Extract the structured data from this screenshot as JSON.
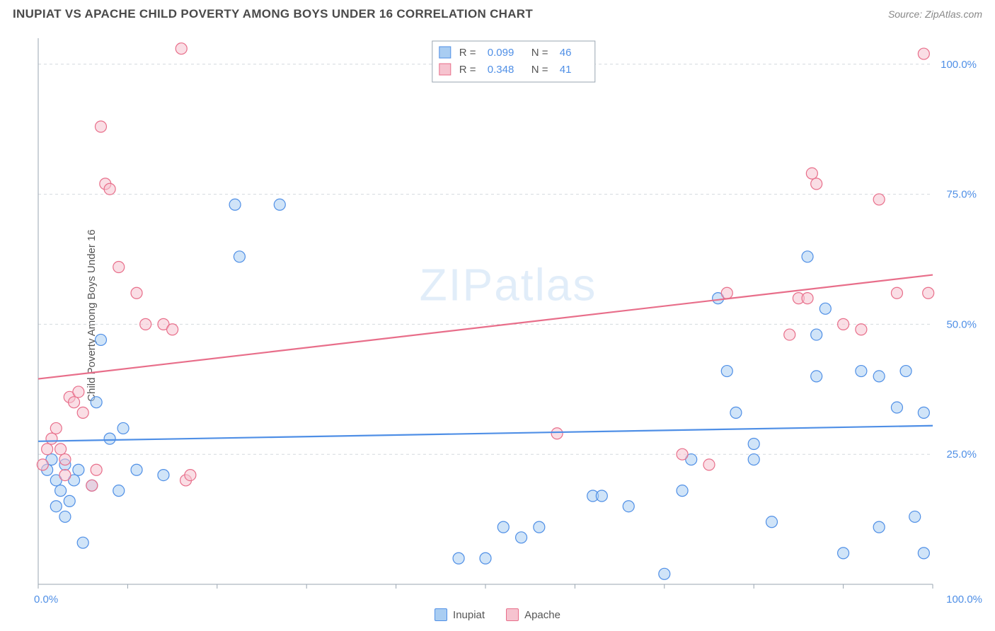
{
  "title": "INUPIAT VS APACHE CHILD POVERTY AMONG BOYS UNDER 16 CORRELATION CHART",
  "source_label": "Source: ZipAtlas.com",
  "y_axis_label": "Child Poverty Among Boys Under 16",
  "watermark": {
    "bold": "ZIP",
    "thin": "atlas"
  },
  "axis": {
    "xlim": [
      0,
      100
    ],
    "ylim": [
      0,
      105
    ],
    "x_ticks_minor_step": 10,
    "y_ticks": [
      25,
      50,
      75,
      100
    ],
    "y_tick_labels": [
      "25.0%",
      "50.0%",
      "75.0%",
      "100.0%"
    ],
    "x_end_labels": [
      "0.0%",
      "100.0%"
    ],
    "axis_color": "#9aa5b1",
    "grid_color": "#d4d9de",
    "tick_label_color": "#4f8fe6"
  },
  "series": [
    {
      "name": "Inupiat",
      "fill": "#a9cdf2",
      "stroke": "#4f8fe6",
      "R": "0.099",
      "N": "46",
      "trend": {
        "y0": 27.5,
        "y1": 30.5
      },
      "marker_radius": 8,
      "points": [
        [
          1,
          22
        ],
        [
          1.5,
          24
        ],
        [
          2,
          20
        ],
        [
          2,
          15
        ],
        [
          2.5,
          18
        ],
        [
          3,
          23
        ],
        [
          3,
          13
        ],
        [
          3.5,
          16
        ],
        [
          4,
          20
        ],
        [
          4.5,
          22
        ],
        [
          5,
          8
        ],
        [
          6,
          19
        ],
        [
          6.5,
          35
        ],
        [
          7,
          47
        ],
        [
          8,
          28
        ],
        [
          9,
          18
        ],
        [
          9.5,
          30
        ],
        [
          11,
          22
        ],
        [
          14,
          21
        ],
        [
          22,
          73
        ],
        [
          22.5,
          63
        ],
        [
          27,
          73
        ],
        [
          47,
          5
        ],
        [
          50,
          5
        ],
        [
          52,
          11
        ],
        [
          54,
          9
        ],
        [
          56,
          11
        ],
        [
          62,
          17
        ],
        [
          63,
          17
        ],
        [
          66,
          15
        ],
        [
          70,
          2
        ],
        [
          72,
          18
        ],
        [
          73,
          24
        ],
        [
          76,
          55
        ],
        [
          77,
          41
        ],
        [
          78,
          33
        ],
        [
          80,
          27
        ],
        [
          80,
          24
        ],
        [
          82,
          12
        ],
        [
          86,
          63
        ],
        [
          87,
          48
        ],
        [
          87,
          40
        ],
        [
          88,
          53
        ],
        [
          90,
          6
        ],
        [
          92,
          41
        ],
        [
          94,
          40
        ],
        [
          94,
          11
        ],
        [
          96,
          34
        ],
        [
          97,
          41
        ],
        [
          98,
          13
        ],
        [
          99,
          6
        ],
        [
          99,
          33
        ]
      ]
    },
    {
      "name": "Apache",
      "fill": "#f6c3cf",
      "stroke": "#e86e8a",
      "R": "0.348",
      "N": "41",
      "trend": {
        "y0": 39.5,
        "y1": 59.5
      },
      "marker_radius": 8,
      "points": [
        [
          0.5,
          23
        ],
        [
          1,
          26
        ],
        [
          1.5,
          28
        ],
        [
          2,
          30
        ],
        [
          2.5,
          26
        ],
        [
          3,
          24
        ],
        [
          3,
          21
        ],
        [
          3.5,
          36
        ],
        [
          4,
          35
        ],
        [
          4.5,
          37
        ],
        [
          5,
          33
        ],
        [
          6,
          19
        ],
        [
          6.5,
          22
        ],
        [
          7,
          88
        ],
        [
          7.5,
          77
        ],
        [
          8,
          76
        ],
        [
          9,
          61
        ],
        [
          11,
          56
        ],
        [
          12,
          50
        ],
        [
          14,
          50
        ],
        [
          15,
          49
        ],
        [
          16,
          103
        ],
        [
          16.5,
          20
        ],
        [
          17,
          21
        ],
        [
          58,
          29
        ],
        [
          72,
          25
        ],
        [
          75,
          23
        ],
        [
          77,
          56
        ],
        [
          84,
          48
        ],
        [
          85,
          55
        ],
        [
          86,
          55
        ],
        [
          86.5,
          79
        ],
        [
          87,
          77
        ],
        [
          90,
          50
        ],
        [
          92,
          49
        ],
        [
          94,
          74
        ],
        [
          96,
          56
        ],
        [
          99,
          102
        ],
        [
          99.5,
          56
        ]
      ]
    }
  ],
  "stat_box": {
    "border_color": "#9aa5b1",
    "rows": [
      {
        "sw_fill": "#a9cdf2",
        "sw_stroke": "#4f8fe6",
        "R": "0.099",
        "N": "46"
      },
      {
        "sw_fill": "#f6c3cf",
        "sw_stroke": "#e86e8a",
        "R": "0.348",
        "N": "41"
      }
    ]
  },
  "legend": [
    {
      "label": "Inupiat",
      "fill": "#a9cdf2",
      "stroke": "#4f8fe6"
    },
    {
      "label": "Apache",
      "fill": "#f6c3cf",
      "stroke": "#e86e8a"
    }
  ]
}
